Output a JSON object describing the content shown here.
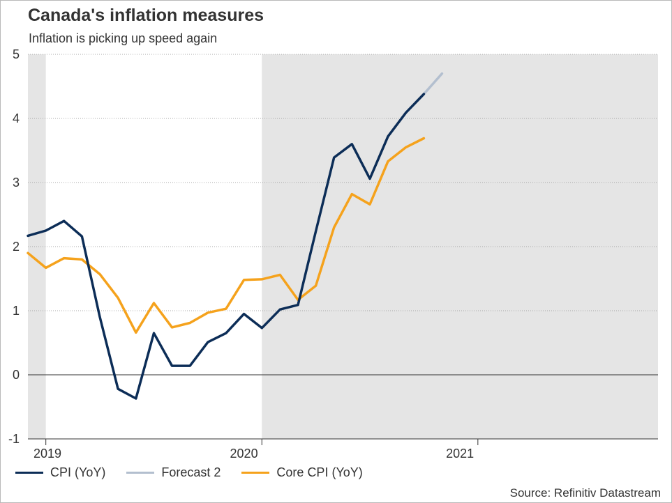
{
  "title": "Canada's inflation measures",
  "subtitle": "Inflation is picking up speed again",
  "source": "Source: Refinitiv Datastream",
  "chart_data": {
    "type": "line",
    "title": "Canada's inflation measures",
    "subtitle": "Inflation is picking up speed again",
    "ylim": [
      -1,
      5
    ],
    "yticks": [
      -1,
      0,
      1,
      2,
      3,
      4,
      5
    ],
    "x_range": [
      2019.0,
      2021.917
    ],
    "xtick_labels": [
      {
        "label": "2019",
        "at": 2019.0
      },
      {
        "label": "2020",
        "at": 2020.0
      },
      {
        "label": "2021",
        "at": 2021.0
      }
    ],
    "year_dividers": [
      2019.083,
      2020.083,
      2021.083
    ],
    "shaded_bands": [
      [
        2019.0,
        2019.083
      ],
      [
        2020.083,
        2021.917
      ]
    ],
    "grid": true,
    "legend_position": "bottom",
    "series": [
      {
        "name": "CPI (YoY)",
        "color": "#0c2d57",
        "x": [
          2019.0,
          2019.083,
          2019.167,
          2019.25,
          2019.333,
          2019.417,
          2019.5,
          2019.583,
          2019.667,
          2019.75,
          2019.833,
          2019.917,
          2020.0,
          2020.083,
          2020.167,
          2020.25,
          2020.333,
          2020.417,
          2020.5,
          2020.583,
          2020.667,
          2020.75,
          2020.833,
          2020.917
        ],
        "values": [
          2.17,
          2.25,
          2.4,
          2.16,
          0.9,
          -0.22,
          -0.37,
          0.65,
          0.14,
          0.14,
          0.51,
          0.65,
          0.95,
          0.73,
          1.02,
          1.09,
          2.24,
          3.39,
          3.6,
          3.06,
          3.72,
          4.09,
          4.38,
          null
        ],
        "values_note": "monthly readings"
      },
      {
        "name": "Forecast 2",
        "color": "#b3bfcf",
        "x": [
          2020.833,
          2020.917
        ],
        "values": [
          4.38,
          4.7
        ]
      },
      {
        "name": "Core CPI (YoY)",
        "color": "#f5a21c",
        "x": [
          2019.0,
          2019.083,
          2019.167,
          2019.25,
          2019.333,
          2019.417,
          2019.5,
          2019.583,
          2019.667,
          2019.75,
          2019.833,
          2019.917,
          2020.0,
          2020.083,
          2020.167,
          2020.25,
          2020.333,
          2020.417,
          2020.5,
          2020.583,
          2020.667,
          2020.75,
          2020.833
        ],
        "values": [
          1.9,
          1.67,
          1.82,
          1.8,
          1.57,
          1.2,
          0.66,
          1.12,
          0.74,
          0.81,
          0.97,
          1.03,
          1.48,
          1.49,
          1.56,
          1.17,
          1.39,
          2.3,
          2.82,
          2.66,
          3.33,
          3.55,
          3.69
        ]
      }
    ]
  }
}
